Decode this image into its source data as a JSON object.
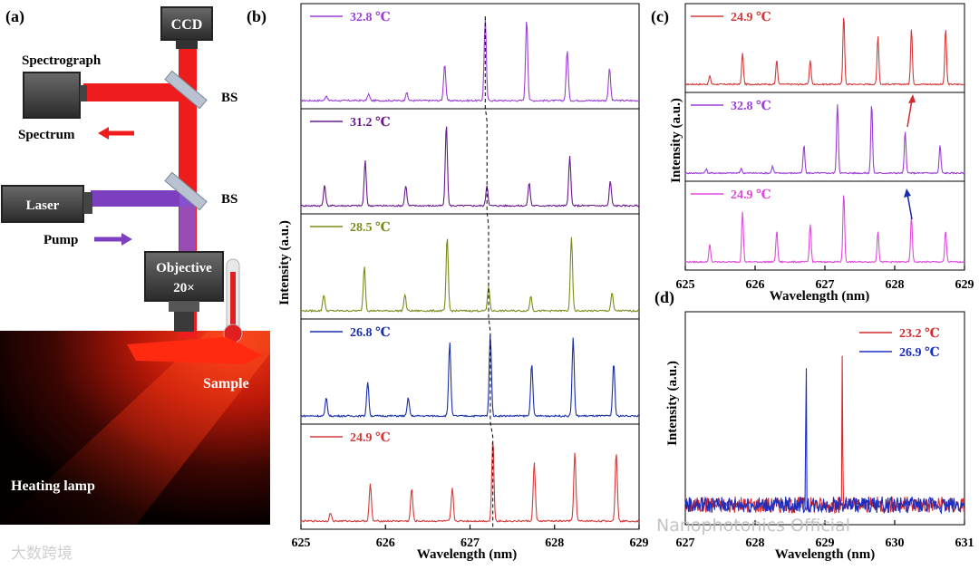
{
  "panel_labels": {
    "a": "(a)",
    "b": "(b)",
    "c": "(c)",
    "d": "(d)"
  },
  "schematic": {
    "ccd": "CCD",
    "spectrograph": "Spectrograph",
    "bs_top": "BS",
    "bs_bottom": "BS",
    "spectrum": "Spectrum",
    "laser": "Laser",
    "pump": "Pump",
    "objective_line1": "Objective",
    "objective_line2": "20×",
    "sample": "Sample",
    "heating_lamp": "Heating lamp"
  },
  "watermarks": {
    "left": "大数跨境",
    "right": "Nanophotonics Official"
  },
  "colors": {
    "c32_8": "#9b3fd6",
    "c31_2": "#6a1a8a",
    "c28_5": "#7e8a1a",
    "c26_8": "#1a2ea8",
    "c24_9": "#d43a3a",
    "c24_9_pink": "#e04adc",
    "c23_2": "#d42a2a",
    "c26_9": "#1a2ec0",
    "beam": "#ee1c1c",
    "pump": "#7b3fc0"
  },
  "chart_data": [
    {
      "id": "b",
      "type": "line",
      "xlabel": "Wavelength (nm)",
      "ylabel": "Intensity (a.u.)",
      "xlim": [
        625,
        629
      ],
      "xticks": [
        "625",
        "626",
        "627",
        "628",
        "629"
      ],
      "series": [
        {
          "name": "32.8 ℃",
          "color": "#9b3fd6",
          "peaks": [
            [
              625.3,
              0.06
            ],
            [
              625.8,
              0.08
            ],
            [
              626.25,
              0.1
            ],
            [
              626.7,
              0.45
            ],
            [
              627.18,
              1.0
            ],
            [
              627.67,
              1.0
            ],
            [
              628.15,
              0.62
            ],
            [
              628.65,
              0.4
            ]
          ]
        },
        {
          "name": "31.2 ℃",
          "color": "#6a1a8a",
          "peaks": [
            [
              625.28,
              0.25
            ],
            [
              625.76,
              0.55
            ],
            [
              626.24,
              0.25
            ],
            [
              626.72,
              1.0
            ],
            [
              627.2,
              0.25
            ],
            [
              627.7,
              0.28
            ],
            [
              628.18,
              0.6
            ],
            [
              628.66,
              0.3
            ]
          ]
        },
        {
          "name": "28.5 ℃",
          "color": "#7e8a1a",
          "peaks": [
            [
              625.27,
              0.2
            ],
            [
              625.75,
              0.55
            ],
            [
              626.23,
              0.2
            ],
            [
              626.73,
              0.9
            ],
            [
              627.22,
              0.3
            ],
            [
              627.72,
              0.18
            ],
            [
              628.2,
              0.9
            ],
            [
              628.68,
              0.22
            ]
          ]
        },
        {
          "name": "26.8 ℃",
          "color": "#1a2ea8",
          "peaks": [
            [
              625.3,
              0.22
            ],
            [
              625.79,
              0.42
            ],
            [
              626.27,
              0.22
            ],
            [
              626.76,
              0.9
            ],
            [
              627.24,
              1.0
            ],
            [
              627.73,
              0.65
            ],
            [
              628.22,
              0.95
            ],
            [
              628.7,
              0.65
            ]
          ]
        },
        {
          "name": "24.9 ℃",
          "color": "#d43a3a",
          "peaks": [
            [
              625.35,
              0.1
            ],
            [
              625.82,
              0.45
            ],
            [
              626.31,
              0.4
            ],
            [
              626.79,
              0.4
            ],
            [
              627.27,
              1.0
            ],
            [
              627.76,
              0.72
            ],
            [
              628.24,
              0.85
            ],
            [
              628.73,
              0.85
            ]
          ]
        }
      ]
    },
    {
      "id": "c",
      "type": "line",
      "xlabel": "Wavelength (nm)",
      "ylabel": "Intensity (a.u.)",
      "xlim": [
        625,
        629
      ],
      "xticks": [
        "625",
        "626",
        "627",
        "628",
        "629"
      ],
      "series": [
        {
          "name": "24.9 ℃",
          "color": "#d43a3a",
          "peaks": [
            [
              625.35,
              0.12
            ],
            [
              625.82,
              0.45
            ],
            [
              626.31,
              0.35
            ],
            [
              626.79,
              0.35
            ],
            [
              627.27,
              1.0
            ],
            [
              627.76,
              0.7
            ],
            [
              628.24,
              0.8
            ],
            [
              628.73,
              0.8
            ]
          ]
        },
        {
          "name": "32.8 ℃",
          "color": "#9b3fd6",
          "peaks": [
            [
              625.3,
              0.06
            ],
            [
              625.8,
              0.07
            ],
            [
              626.25,
              0.1
            ],
            [
              626.7,
              0.4
            ],
            [
              627.18,
              1.0
            ],
            [
              627.67,
              1.0
            ],
            [
              628.15,
              0.6
            ],
            [
              628.65,
              0.4
            ]
          ]
        },
        {
          "name": "24.9 ℃",
          "color": "#e04adc",
          "peaks": [
            [
              625.35,
              0.25
            ],
            [
              625.82,
              0.72
            ],
            [
              626.31,
              0.45
            ],
            [
              626.79,
              0.55
            ],
            [
              627.27,
              1.0
            ],
            [
              627.76,
              0.45
            ],
            [
              628.24,
              0.65
            ],
            [
              628.73,
              0.45
            ]
          ]
        }
      ]
    },
    {
      "id": "d",
      "type": "line",
      "xlabel": "Wavelength (nm)",
      "ylabel": "Intensity (a.u.)",
      "xlim": [
        627,
        631
      ],
      "xticks": [
        "627",
        "628",
        "629",
        "630",
        "631"
      ],
      "series": [
        {
          "name": "23.2 ℃",
          "color": "#d42a2a",
          "peaks": [
            [
              629.25,
              1.0
            ]
          ]
        },
        {
          "name": "26.9 ℃",
          "color": "#1a2ec0",
          "peaks": [
            [
              628.73,
              1.0
            ]
          ]
        }
      ]
    }
  ]
}
